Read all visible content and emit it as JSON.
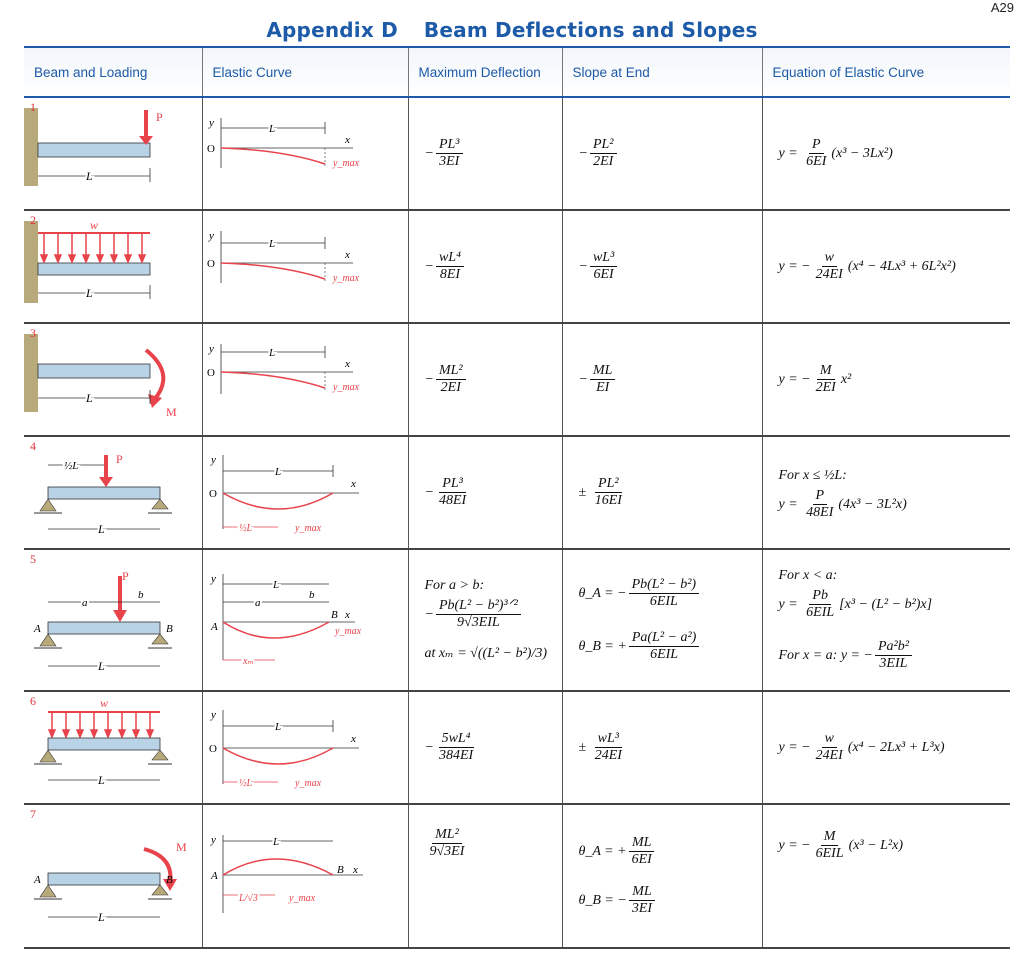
{
  "page_number": "A29",
  "title_a": "Appendix D",
  "title_b": "Beam Deflections and Slopes",
  "headers": [
    "Beam and Loading",
    "Elastic Curve",
    "Maximum Deflection",
    "Slope at End",
    "Equation of Elastic Curve"
  ],
  "rows": [
    {
      "num": "1",
      "load_label": "P",
      "deflection": {
        "sign": "−",
        "num": "PL³",
        "den": "3EI"
      },
      "slope": {
        "sign": "−",
        "num": "PL²",
        "den": "2EI"
      },
      "equation": {
        "lhs": "y =",
        "sign": "",
        "num": "P",
        "den": "6EI",
        "rest": "(x³ − 3Lx²)"
      }
    },
    {
      "num": "2",
      "load_label": "w",
      "deflection": {
        "sign": "−",
        "num": "wL⁴",
        "den": "8EI"
      },
      "slope": {
        "sign": "−",
        "num": "wL³",
        "den": "6EI"
      },
      "equation": {
        "lhs": "y =",
        "sign": "−",
        "num": "w",
        "den": "24EI",
        "rest": "(x⁴ − 4Lx³ + 6L²x²)"
      }
    },
    {
      "num": "3",
      "load_label": "M",
      "deflection": {
        "sign": "−",
        "num": "ML²",
        "den": "2EI"
      },
      "slope": {
        "sign": "−",
        "num": "ML",
        "den": "EI"
      },
      "equation": {
        "lhs": "y =",
        "sign": "−",
        "num": "M",
        "den": "2EI",
        "rest": "x²"
      }
    },
    {
      "num": "4",
      "load_label": "P",
      "deflection": {
        "sign": "−",
        "num": "PL³",
        "den": "48EI"
      },
      "slope": {
        "sign": "±",
        "num": "PL²",
        "den": "16EI"
      },
      "equation": {
        "condition": "For x ≤ ½L:",
        "lhs": "y =",
        "sign": "",
        "num": "P",
        "den": "48EI",
        "rest": "(4x³ − 3L²x)"
      }
    },
    {
      "num": "5",
      "load_label": "P",
      "deflection": {
        "condition": "For a > b:",
        "sign": "−",
        "num": "Pb(L² − b²)³ᐟ²",
        "den": "9√3EIL",
        "xm_label": "at xₘ =",
        "xm_expr": "√((L² − b²)/3)"
      },
      "slope_a": {
        "lhs": "θ_A =",
        "sign": "−",
        "num": "Pb(L² − b²)",
        "den": "6EIL"
      },
      "slope_b": {
        "lhs": "θ_B =",
        "sign": "+",
        "num": "Pa(L² − a²)",
        "den": "6EIL"
      },
      "equation": {
        "condition": "For x < a:",
        "lhs": "y =",
        "sign": "",
        "num": "Pb",
        "den": "6EIL",
        "rest": "[x³ − (L² − b²)x]"
      },
      "equation2": {
        "condition": "For x = a:",
        "lhs": "y =",
        "sign": "−",
        "num": "Pa²b²",
        "den": "3EIL"
      }
    },
    {
      "num": "6",
      "load_label": "w",
      "deflection": {
        "sign": "−",
        "num": "5wL⁴",
        "den": "384EI"
      },
      "slope": {
        "sign": "±",
        "num": "wL³",
        "den": "24EI"
      },
      "equation": {
        "lhs": "y =",
        "sign": "−",
        "num": "w",
        "den": "24EI",
        "rest": "(x⁴ − 2Lx³ + L³x)"
      }
    },
    {
      "num": "7",
      "load_label": "M",
      "deflection": {
        "sign": "",
        "num": "ML²",
        "den": "9√3EI"
      },
      "slope_a": {
        "lhs": "θ_A =",
        "sign": "+",
        "num": "ML",
        "den": "6EI"
      },
      "slope_b": {
        "lhs": "θ_B =",
        "sign": "−",
        "num": "ML",
        "den": "3EI"
      },
      "equation": {
        "lhs": "y =",
        "sign": "−",
        "num": "M",
        "den": "6EIL",
        "rest": "(x³ − L²x)"
      }
    }
  ],
  "diagram_labels": {
    "L": "L",
    "half_L": "½L",
    "a": "a",
    "b": "b",
    "A": "A",
    "B": "B",
    "O": "O",
    "x": "x",
    "y": "y",
    "ymax": "y_max",
    "xm": "xₘ",
    "L_root3": "L/√3"
  },
  "colors": {
    "header_blue": "#1d5aa8",
    "load_red": "#e8434b",
    "beam_fill": "#b9d3e6"
  }
}
